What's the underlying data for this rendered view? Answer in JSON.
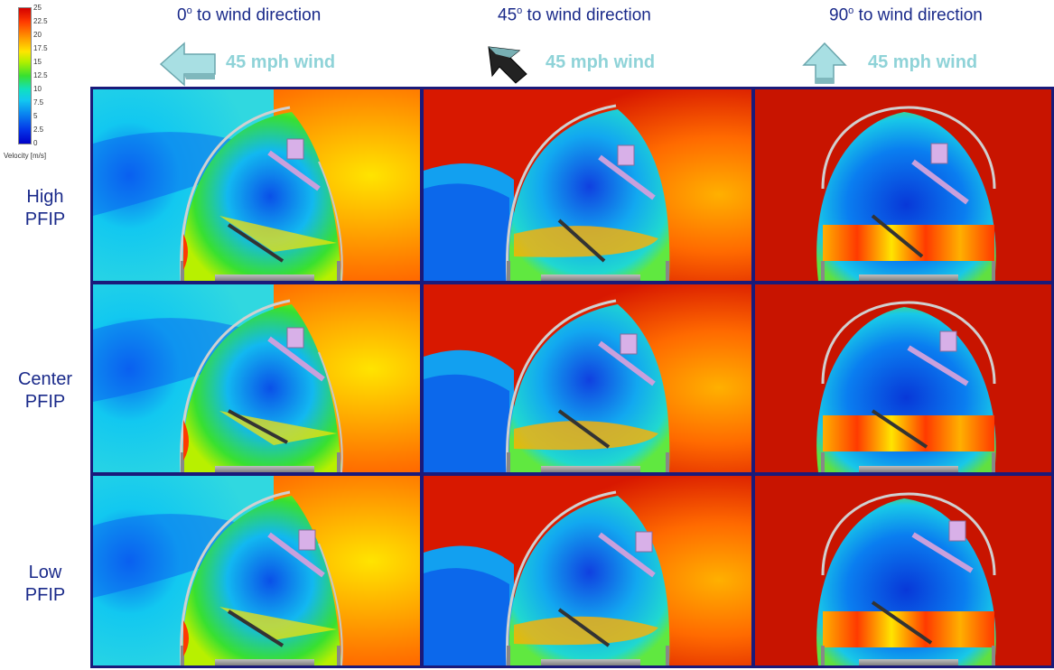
{
  "legend": {
    "ticks": [
      "25",
      "22.5",
      "20",
      "17.5",
      "15",
      "12.5",
      "10",
      "7.5",
      "5",
      "2.5",
      "0"
    ],
    "title": "Velocity [m/s]"
  },
  "columns": [
    {
      "angle": "0",
      "suffix": " to wind direction",
      "wind": "45 mph wind",
      "arrow": "left-arrow-icon"
    },
    {
      "angle": "45",
      "suffix": " to wind direction",
      "wind": "45 mph wind",
      "arrow": "diagonal-arrow-icon"
    },
    {
      "angle": "90",
      "suffix": " to wind direction",
      "wind": "45 mph wind",
      "arrow": "up-arrow-icon"
    }
  ],
  "degree_symbol": "o",
  "rows": [
    {
      "line1": "High",
      "line2": "PFIP"
    },
    {
      "line1": "Center",
      "line2": "PFIP"
    },
    {
      "line1": "Low",
      "line2": "PFIP"
    }
  ],
  "colors": {
    "title_blue": "#1a2a8a",
    "wind_label": "#8fd3d8",
    "arrow_fill": "#a8dfe3",
    "high_velocity": "#cc1100",
    "low_velocity": "#0830d8"
  }
}
